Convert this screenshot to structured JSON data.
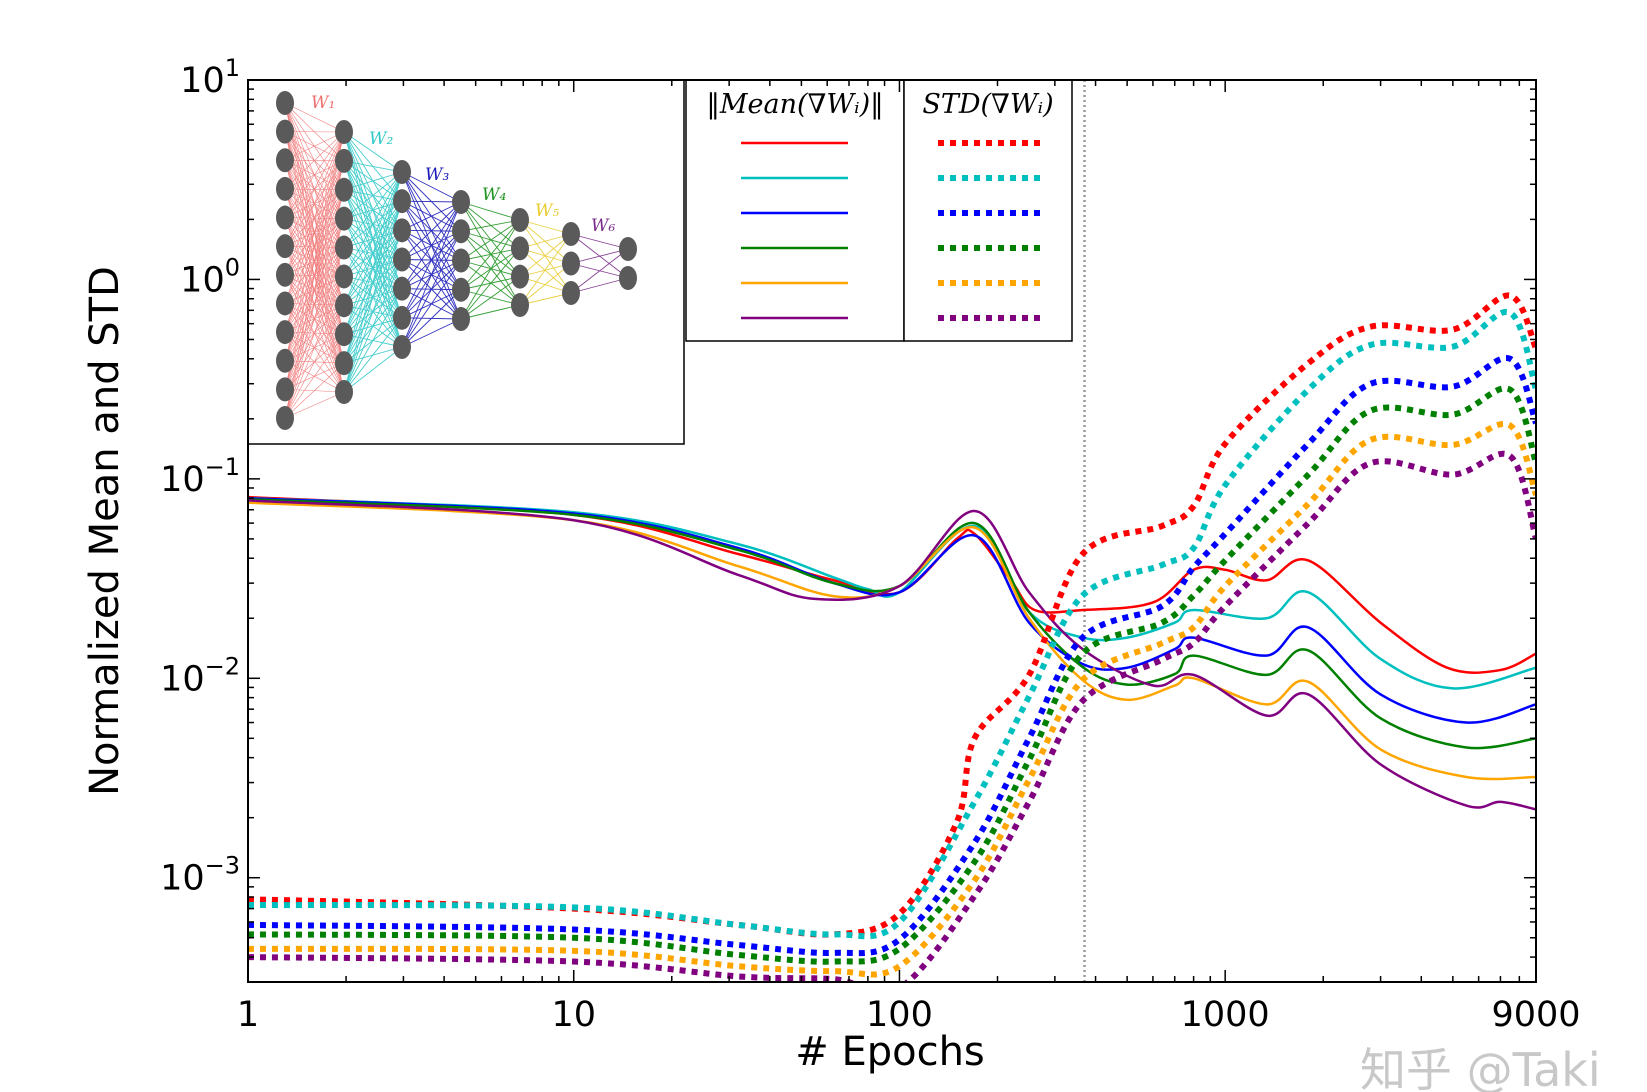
{
  "chart_data": {
    "type": "line",
    "xlabel": "# Epochs",
    "ylabel": "Normalized Mean and STD",
    "xscale": "log",
    "yscale": "log",
    "xlim": [
      1,
      9000
    ],
    "ylim": [
      0.0003,
      10
    ],
    "x_ticks": [
      {
        "value": 1,
        "label": "1"
      },
      {
        "value": 10,
        "label": "10"
      },
      {
        "value": 100,
        "label": "100"
      },
      {
        "value": 1000,
        "label": "1000"
      },
      {
        "value": 9000,
        "label": "9000"
      }
    ],
    "y_ticks": [
      {
        "value": 10,
        "base": "10",
        "exp": "1"
      },
      {
        "value": 1,
        "base": "10",
        "exp": "0"
      },
      {
        "value": 0.1,
        "base": "10",
        "exp": "−1"
      },
      {
        "value": 0.01,
        "base": "10",
        "exp": "−2"
      },
      {
        "value": 0.001,
        "base": "10",
        "exp": "−3"
      }
    ],
    "grid": false,
    "vline": {
      "x": 370,
      "color": "#999999",
      "style": "dotted"
    },
    "legend": {
      "placement": "top-center",
      "mean_header": "‖Mean(∇Wᵢ)‖",
      "std_header": "STD(∇Wᵢ)"
    },
    "colors": [
      "#ff0000",
      "#00bfbf",
      "#0000ff",
      "#008000",
      "#ffa500",
      "#800080"
    ],
    "series": [
      {
        "kind": "mean",
        "layer": "W1",
        "color": "#ff0000",
        "points": [
          [
            1,
            0.081
          ],
          [
            10,
            0.066
          ],
          [
            32,
            0.042
          ],
          [
            63,
            0.031
          ],
          [
            100,
            0.027
          ],
          [
            150,
            0.05
          ],
          [
            170,
            0.053
          ],
          [
            220,
            0.031
          ],
          [
            260,
            0.022
          ],
          [
            365,
            0.022
          ],
          [
            600,
            0.024
          ],
          [
            800,
            0.035
          ],
          [
            1000,
            0.035
          ],
          [
            1340,
            0.031
          ],
          [
            1800,
            0.039
          ],
          [
            3000,
            0.019
          ],
          [
            4800,
            0.0113
          ],
          [
            7000,
            0.011
          ],
          [
            9000,
            0.0133
          ]
        ]
      },
      {
        "kind": "mean",
        "layer": "W2",
        "color": "#00bfbf",
        "points": [
          [
            1,
            0.08
          ],
          [
            10,
            0.068
          ],
          [
            32,
            0.047
          ],
          [
            63,
            0.032
          ],
          [
            80,
            0.028
          ],
          [
            100,
            0.027
          ],
          [
            170,
            0.058
          ],
          [
            250,
            0.0215
          ],
          [
            365,
            0.016
          ],
          [
            500,
            0.016
          ],
          [
            700,
            0.019
          ],
          [
            800,
            0.022
          ],
          [
            1340,
            0.02
          ],
          [
            1800,
            0.027
          ],
          [
            3000,
            0.0125
          ],
          [
            5000,
            0.0089
          ],
          [
            9000,
            0.0113
          ]
        ]
      },
      {
        "kind": "mean",
        "layer": "W3",
        "color": "#0000ff",
        "points": [
          [
            1,
            0.08
          ],
          [
            10,
            0.067
          ],
          [
            32,
            0.045
          ],
          [
            63,
            0.03
          ],
          [
            100,
            0.027
          ],
          [
            170,
            0.052
          ],
          [
            250,
            0.019
          ],
          [
            365,
            0.0118
          ],
          [
            500,
            0.0113
          ],
          [
            700,
            0.014
          ],
          [
            800,
            0.016
          ],
          [
            1340,
            0.013
          ],
          [
            1800,
            0.018
          ],
          [
            3000,
            0.0083
          ],
          [
            5500,
            0.006
          ],
          [
            9000,
            0.0074
          ]
        ]
      },
      {
        "kind": "mean",
        "layer": "W4",
        "color": "#008000",
        "points": [
          [
            1,
            0.079
          ],
          [
            10,
            0.066
          ],
          [
            32,
            0.044
          ],
          [
            63,
            0.03
          ],
          [
            100,
            0.029
          ],
          [
            170,
            0.06
          ],
          [
            250,
            0.0215
          ],
          [
            365,
            0.0114
          ],
          [
            500,
            0.0093
          ],
          [
            700,
            0.0105
          ],
          [
            800,
            0.013
          ],
          [
            1340,
            0.0104
          ],
          [
            1800,
            0.0138
          ],
          [
            3000,
            0.0063
          ],
          [
            5500,
            0.0045
          ],
          [
            9000,
            0.005
          ]
        ]
      },
      {
        "kind": "mean",
        "layer": "W5",
        "color": "#ffa500",
        "points": [
          [
            1,
            0.076
          ],
          [
            10,
            0.062
          ],
          [
            32,
            0.0365
          ],
          [
            63,
            0.0258
          ],
          [
            100,
            0.029
          ],
          [
            170,
            0.057
          ],
          [
            250,
            0.02
          ],
          [
            365,
            0.0098
          ],
          [
            500,
            0.0078
          ],
          [
            700,
            0.0092
          ],
          [
            800,
            0.01
          ],
          [
            1340,
            0.0074
          ],
          [
            1800,
            0.0096
          ],
          [
            3000,
            0.0044
          ],
          [
            5500,
            0.0032
          ],
          [
            9000,
            0.0032
          ]
        ]
      },
      {
        "kind": "mean",
        "layer": "W6",
        "color": "#800080",
        "points": [
          [
            1,
            0.078
          ],
          [
            10,
            0.062
          ],
          [
            32,
            0.033
          ],
          [
            55,
            0.025
          ],
          [
            100,
            0.029
          ],
          [
            170,
            0.069
          ],
          [
            250,
            0.027
          ],
          [
            365,
            0.014
          ],
          [
            600,
            0.0092
          ],
          [
            800,
            0.0104
          ],
          [
            1340,
            0.0065
          ],
          [
            1800,
            0.0083
          ],
          [
            3000,
            0.0037
          ],
          [
            5500,
            0.0023
          ],
          [
            7000,
            0.0024
          ],
          [
            9000,
            0.0022
          ]
        ]
      },
      {
        "kind": "std",
        "layer": "W1",
        "color": "#ff0000",
        "points": [
          [
            1,
            0.00078
          ],
          [
            10,
            0.0007
          ],
          [
            32,
            0.00058
          ],
          [
            63,
            0.00052
          ],
          [
            100,
            0.00066
          ],
          [
            150,
            0.0019
          ],
          [
            170,
            0.005
          ],
          [
            250,
            0.0104
          ],
          [
            365,
            0.042
          ],
          [
            640,
            0.058
          ],
          [
            800,
            0.073
          ],
          [
            1000,
            0.15
          ],
          [
            1800,
            0.38
          ],
          [
            2800,
            0.58
          ],
          [
            5000,
            0.56
          ],
          [
            7500,
            0.83
          ],
          [
            9000,
            0.45
          ]
        ]
      },
      {
        "kind": "std",
        "layer": "W2",
        "color": "#00bfbf",
        "points": [
          [
            1,
            0.00073
          ],
          [
            10,
            0.00071
          ],
          [
            32,
            0.00058
          ],
          [
            63,
            0.00052
          ],
          [
            100,
            0.0006
          ],
          [
            170,
            0.0024
          ],
          [
            250,
            0.0081
          ],
          [
            365,
            0.026
          ],
          [
            640,
            0.037
          ],
          [
            800,
            0.045
          ],
          [
            1000,
            0.093
          ],
          [
            1800,
            0.28
          ],
          [
            2800,
            0.47
          ],
          [
            5000,
            0.46
          ],
          [
            7500,
            0.68
          ],
          [
            9000,
            0.28
          ]
        ]
      },
      {
        "kind": "std",
        "layer": "W3",
        "color": "#0000ff",
        "points": [
          [
            1,
            0.00058
          ],
          [
            10,
            0.00055
          ],
          [
            32,
            0.00046
          ],
          [
            63,
            0.00042
          ],
          [
            100,
            0.00049
          ],
          [
            170,
            0.0015
          ],
          [
            250,
            0.005
          ],
          [
            365,
            0.016
          ],
          [
            640,
            0.023
          ],
          [
            800,
            0.036
          ],
          [
            1000,
            0.053
          ],
          [
            1800,
            0.15
          ],
          [
            2800,
            0.3
          ],
          [
            5000,
            0.29
          ],
          [
            7500,
            0.4
          ],
          [
            9000,
            0.19
          ]
        ]
      },
      {
        "kind": "std",
        "layer": "W4",
        "color": "#008000",
        "points": [
          [
            1,
            0.00052
          ],
          [
            10,
            0.0005
          ],
          [
            32,
            0.00041
          ],
          [
            63,
            0.00038
          ],
          [
            100,
            0.00044
          ],
          [
            170,
            0.0012
          ],
          [
            250,
            0.0039
          ],
          [
            365,
            0.0133
          ],
          [
            640,
            0.019
          ],
          [
            800,
            0.026
          ],
          [
            1000,
            0.039
          ],
          [
            1800,
            0.105
          ],
          [
            2800,
            0.22
          ],
          [
            5000,
            0.21
          ],
          [
            7500,
            0.28
          ],
          [
            9000,
            0.12
          ]
        ]
      },
      {
        "kind": "std",
        "layer": "W5",
        "color": "#ffa500",
        "points": [
          [
            1,
            0.00044
          ],
          [
            10,
            0.00043
          ],
          [
            32,
            0.00036
          ],
          [
            63,
            0.00034
          ],
          [
            100,
            0.00036
          ],
          [
            170,
            0.00097
          ],
          [
            250,
            0.0031
          ],
          [
            365,
            0.0098
          ],
          [
            640,
            0.015
          ],
          [
            800,
            0.018
          ],
          [
            1000,
            0.029
          ],
          [
            1800,
            0.075
          ],
          [
            2800,
            0.157
          ],
          [
            5000,
            0.148
          ],
          [
            7500,
            0.185
          ],
          [
            9000,
            0.083
          ]
        ]
      },
      {
        "kind": "std",
        "layer": "W6",
        "color": "#800080",
        "points": [
          [
            1,
            0.0004
          ],
          [
            10,
            0.00038
          ],
          [
            32,
            0.00032
          ],
          [
            63,
            0.00031
          ],
          [
            100,
            0.00028
          ],
          [
            170,
            0.00081
          ],
          [
            250,
            0.0024
          ],
          [
            365,
            0.0077
          ],
          [
            640,
            0.0124
          ],
          [
            800,
            0.015
          ],
          [
            1000,
            0.023
          ],
          [
            1800,
            0.06
          ],
          [
            2800,
            0.12
          ],
          [
            5000,
            0.105
          ],
          [
            7500,
            0.13
          ],
          [
            9000,
            0.05
          ]
        ]
      }
    ]
  },
  "inset": {
    "layer_sizes": [
      12,
      10,
      7,
      5,
      4,
      3,
      2
    ],
    "labels": [
      "W₁",
      "W₂",
      "W₃",
      "W₄",
      "W₅",
      "W₆"
    ],
    "edge_colors": [
      "#f07070",
      "#30c8c8",
      "#1a1ab8",
      "#1f941f",
      "#e8cc30",
      "#7a2a8a"
    ],
    "node_color": "#5a5a5a"
  },
  "watermark": "知乎 @Taki"
}
